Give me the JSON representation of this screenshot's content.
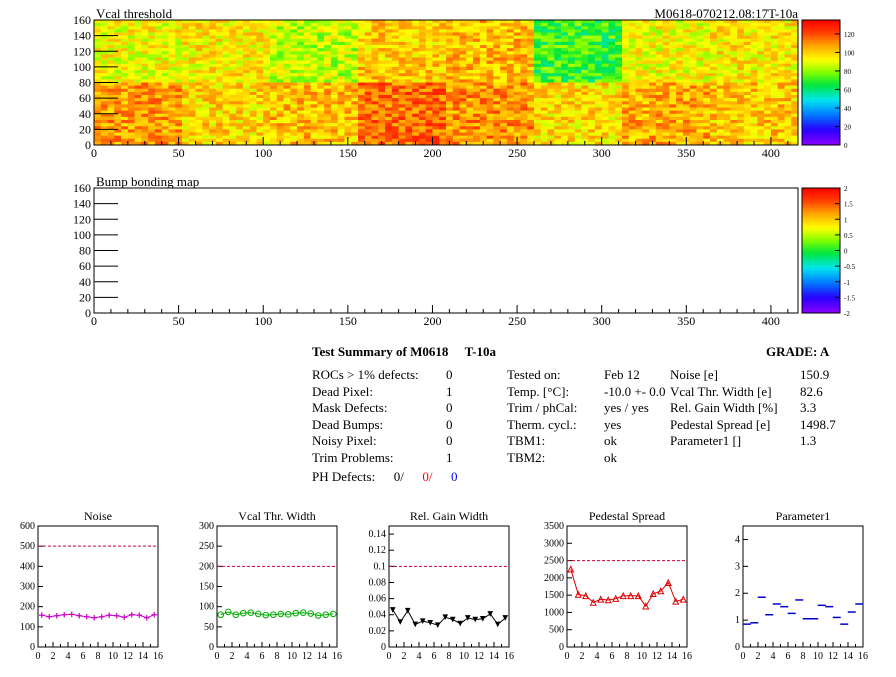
{
  "header": {
    "run_id": "M0618-070212.08:17T-10a"
  },
  "maps": [
    {
      "title": "Vcal threshold",
      "x_ticks": [
        "0",
        "50",
        "100",
        "150",
        "200",
        "250",
        "300",
        "350",
        "400"
      ],
      "y_ticks": [
        "0",
        "20",
        "40",
        "60",
        "80",
        "100",
        "120",
        "140",
        "160"
      ],
      "palette_ticks": [
        "0",
        "20",
        "40",
        "60",
        "80",
        "100",
        "120"
      ],
      "xlim": [
        0,
        416
      ],
      "ylim": [
        0,
        160
      ],
      "zlim": [
        0,
        135
      ],
      "roc_mean_threshold": [
        [
          92,
          95,
          85,
          100,
          103,
          70,
          92,
          95
        ],
        [
          108,
          98,
          102,
          115,
          109,
          97,
          105,
          100
        ]
      ]
    },
    {
      "title": "Bump bonding map",
      "x_ticks": [
        "0",
        "50",
        "100",
        "150",
        "200",
        "250",
        "300",
        "350",
        "400"
      ],
      "y_ticks": [
        "0",
        "20",
        "40",
        "60",
        "80",
        "100",
        "120",
        "140",
        "160"
      ],
      "palette_ticks": [
        "2",
        "1.5",
        "1",
        "0.5",
        "0",
        "-0.5",
        "-1",
        "-1.5",
        "-2"
      ],
      "xlim": [
        0,
        416
      ],
      "ylim": [
        0,
        160
      ],
      "zlim": [
        -2,
        2
      ]
    }
  ],
  "summary": {
    "title": "Test Summary of M0618",
    "temp_code": "T-10a",
    "grade_label": "GRADE:",
    "grade": "A",
    "defects": [
      {
        "label": "ROCs > 1% defects:",
        "value": "0"
      },
      {
        "label": "Dead Pixel:",
        "value": "1"
      },
      {
        "label": "Mask Defects:",
        "value": "0"
      },
      {
        "label": "Dead Bumps:",
        "value": "0"
      },
      {
        "label": "Noisy Pixel:",
        "value": "0"
      },
      {
        "label": "Trim Problems:",
        "value": "1"
      }
    ],
    "ph_defects": {
      "label": "PH Defects:",
      "v1": "0/",
      "v2": "0/",
      "v3": "0"
    },
    "test_info": [
      {
        "label": "Tested on:",
        "value": "Feb 12"
      },
      {
        "label": "Temp. [°C]:",
        "value": "-10.0 +- 0.0"
      },
      {
        "label": "Trim / phCal:",
        "value": "yes / yes"
      },
      {
        "label": "Therm. cycl.:",
        "value": "yes"
      },
      {
        "label": "TBM1:",
        "value": "ok"
      },
      {
        "label": "TBM2:",
        "value": "ok"
      }
    ],
    "results": [
      {
        "label": "Noise [e]",
        "value": "150.9"
      },
      {
        "label": "Vcal Thr. Width [e]",
        "value": "82.6"
      },
      {
        "label": "Rel. Gain Width [%]",
        "value": "3.3"
      },
      {
        "label": "Pedestal Spread [e]",
        "value": "1498.7"
      },
      {
        "label": "Parameter1 []",
        "value": "1.3"
      }
    ]
  },
  "chart_data": [
    {
      "type": "line",
      "title": "Noise",
      "color": "#cc00cc",
      "marker": "cross",
      "x": [
        0,
        1,
        2,
        3,
        4,
        5,
        6,
        7,
        8,
        9,
        10,
        11,
        12,
        13,
        14,
        15
      ],
      "values": [
        158,
        150,
        155,
        160,
        162,
        155,
        150,
        145,
        150,
        158,
        155,
        148,
        160,
        158,
        145,
        160
      ],
      "ylim": [
        0,
        600
      ],
      "y_ticks": [
        "0",
        "100",
        "200",
        "300",
        "400",
        "500",
        "600"
      ],
      "x_ticks": [
        "0",
        "2",
        "4",
        "6",
        "8",
        "10",
        "12",
        "14",
        "16"
      ],
      "limit": 500
    },
    {
      "type": "line",
      "title": "Vcal Thr. Width",
      "color": "#00aa00",
      "marker": "circle",
      "x": [
        0,
        1,
        2,
        3,
        4,
        5,
        6,
        7,
        8,
        9,
        10,
        11,
        12,
        13,
        14,
        15
      ],
      "values": [
        80,
        87,
        80,
        84,
        85,
        82,
        79,
        80,
        82,
        81,
        84,
        85,
        83,
        78,
        80,
        82
      ],
      "ylim": [
        0,
        300
      ],
      "y_ticks": [
        "0",
        "50",
        "100",
        "150",
        "200",
        "250",
        "300"
      ],
      "x_ticks": [
        "0",
        "2",
        "4",
        "6",
        "8",
        "10",
        "12",
        "14",
        "16"
      ],
      "limit": 200
    },
    {
      "type": "line",
      "title": "Rel. Gain Width",
      "color": "#000000",
      "marker": "triangle-down",
      "x": [
        0,
        1,
        2,
        3,
        4,
        5,
        6,
        7,
        8,
        9,
        10,
        11,
        12,
        13,
        14,
        15
      ],
      "values": [
        0.046,
        0.031,
        0.045,
        0.028,
        0.032,
        0.03,
        0.027,
        0.037,
        0.034,
        0.029,
        0.036,
        0.034,
        0.035,
        0.041,
        0.028,
        0.036
      ],
      "ylim": [
        0,
        0.15
      ],
      "y_ticks": [
        "0",
        "0.02",
        "0.04",
        "0.06",
        "0.08",
        "0.1",
        "0.12",
        "0.14"
      ],
      "x_ticks": [
        "0",
        "2",
        "4",
        "6",
        "8",
        "10",
        "12",
        "14",
        "16"
      ],
      "limit": 0.1
    },
    {
      "type": "line",
      "title": "Pedestal Spread",
      "color": "#dd0000",
      "marker": "triangle-up",
      "x": [
        0,
        1,
        2,
        3,
        4,
        5,
        6,
        7,
        8,
        9,
        10,
        11,
        12,
        13,
        14,
        15
      ],
      "values": [
        2250,
        1520,
        1480,
        1290,
        1380,
        1360,
        1400,
        1480,
        1480,
        1480,
        1180,
        1540,
        1620,
        1860,
        1320,
        1380
      ],
      "ylim": [
        0,
        3500
      ],
      "y_ticks": [
        "0",
        "500",
        "1000",
        "1500",
        "2000",
        "2500",
        "3000",
        "3500"
      ],
      "x_ticks": [
        "0",
        "2",
        "4",
        "6",
        "8",
        "10",
        "12",
        "14",
        "16"
      ],
      "limit": 2500
    },
    {
      "type": "scatter",
      "title": "Parameter1",
      "color": "#0000cc",
      "marker": "dash",
      "x": [
        0,
        1,
        2,
        3,
        4,
        5,
        6,
        7,
        8,
        9,
        10,
        11,
        12,
        13,
        14,
        15
      ],
      "values": [
        0.85,
        0.9,
        1.85,
        1.2,
        1.6,
        1.5,
        1.25,
        1.75,
        1.05,
        1.05,
        1.55,
        1.5,
        1.1,
        0.85,
        1.3,
        1.6
      ],
      "ylim": [
        0,
        4.5
      ],
      "y_ticks": [
        "0",
        "1",
        "2",
        "3",
        "4"
      ],
      "x_ticks": [
        "0",
        "2",
        "4",
        "6",
        "8",
        "10",
        "12",
        "14",
        "16"
      ]
    }
  ]
}
